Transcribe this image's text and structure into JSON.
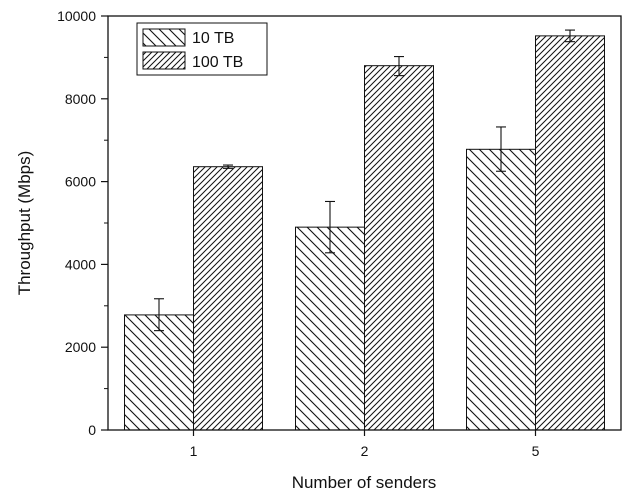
{
  "chart_data": {
    "type": "bar",
    "title": "",
    "xlabel": "Number of senders",
    "ylabel": "Throughput (Mbps)",
    "categories": [
      "1",
      "2",
      "5"
    ],
    "ylim": [
      0,
      10000
    ],
    "yticks": [
      "0",
      "2000",
      "4000",
      "6000",
      "8000",
      "10000"
    ],
    "grid": false,
    "legend_position": "top-left",
    "series": [
      {
        "name": "10 TB",
        "pattern": "backslash-hatch",
        "values": [
          2780,
          4900,
          6780
        ],
        "errors": [
          [
            2400,
            3170
          ],
          [
            4280,
            5520
          ],
          [
            6250,
            7320
          ]
        ]
      },
      {
        "name": "100 TB",
        "pattern": "slash-hatch",
        "values": [
          6360,
          8800,
          9520
        ],
        "errors": [
          [
            6320,
            6400
          ],
          [
            8560,
            9020
          ],
          [
            9380,
            9660
          ]
        ]
      }
    ]
  }
}
